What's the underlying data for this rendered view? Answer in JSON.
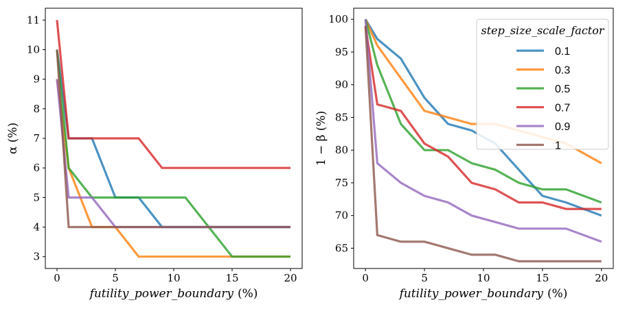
{
  "chart_data": [
    {
      "type": "line",
      "title": "",
      "xlabel": "futility_power_boundary",
      "xlabel_unit": "(%)",
      "ylabel": "α (%)",
      "xlim": [
        -1,
        21
      ],
      "ylim": [
        2.6,
        11.4
      ],
      "xticks": [
        "0",
        "5",
        "10",
        "15",
        "20"
      ],
      "yticks": [
        "3",
        "4",
        "5",
        "6",
        "7",
        "8",
        "9",
        "10",
        "11"
      ],
      "x": [
        0,
        1,
        3,
        5,
        7,
        9,
        11,
        13,
        15,
        17,
        20
      ],
      "series": [
        {
          "name": "0.1",
          "values": [
            10,
            7,
            7,
            5,
            5,
            4,
            4,
            4,
            4,
            4,
            4
          ]
        },
        {
          "name": "0.3",
          "values": [
            9,
            6,
            4,
            4,
            3,
            3,
            3,
            3,
            3,
            3,
            3
          ]
        },
        {
          "name": "0.5",
          "values": [
            10,
            6,
            5,
            5,
            5,
            5,
            5,
            4,
            3,
            3,
            3
          ]
        },
        {
          "name": "0.7",
          "values": [
            11,
            7,
            7,
            7,
            7,
            6,
            6,
            6,
            6,
            6,
            6
          ]
        },
        {
          "name": "0.9",
          "values": [
            9,
            5,
            5,
            4,
            4,
            4,
            4,
            4,
            4,
            4,
            4
          ]
        },
        {
          "name": "1",
          "values": [
            10,
            4,
            4,
            4,
            4,
            4,
            4,
            4,
            4,
            4,
            4
          ]
        }
      ]
    },
    {
      "type": "line",
      "title": "",
      "xlabel": "futility_power_boundary",
      "xlabel_unit": "(%)",
      "ylabel": "1 − β (%)",
      "xlim": [
        -1,
        21
      ],
      "ylim": [
        61.9,
        101.7
      ],
      "xticks": [
        "0",
        "5",
        "10",
        "15",
        "20"
      ],
      "yticks": [
        "65",
        "70",
        "75",
        "80",
        "85",
        "90",
        "95",
        "100"
      ],
      "x": [
        0,
        1,
        3,
        5,
        7,
        9,
        11,
        13,
        15,
        17,
        20
      ],
      "series": [
        {
          "name": "0.1",
          "values": [
            100,
            97,
            94,
            88,
            84,
            83,
            81,
            77,
            73,
            72,
            70
          ]
        },
        {
          "name": "0.3",
          "values": [
            100,
            96,
            91,
            86,
            85,
            84,
            84,
            83,
            82,
            81,
            78
          ]
        },
        {
          "name": "0.5",
          "values": [
            100,
            93,
            84,
            80,
            80,
            78,
            77,
            75,
            74,
            74,
            72
          ]
        },
        {
          "name": "0.7",
          "values": [
            99,
            87,
            86,
            81,
            79,
            75,
            74,
            72,
            72,
            71,
            71
          ]
        },
        {
          "name": "0.9",
          "values": [
            100,
            78,
            75,
            73,
            72,
            70,
            69,
            68,
            68,
            68,
            66
          ]
        },
        {
          "name": "1",
          "values": [
            99,
            67,
            66,
            66,
            65,
            64,
            64,
            63,
            63,
            63,
            63
          ]
        }
      ]
    }
  ],
  "legend": {
    "title": "step_size_scale_factor",
    "placement": "top-right",
    "entries": [
      "0.1",
      "0.3",
      "0.5",
      "0.7",
      "0.9",
      "1"
    ]
  },
  "colors": {
    "0.1": "#1f77b4",
    "0.3": "#ff7f0e",
    "0.5": "#2ca02c",
    "0.7": "#d62728",
    "0.9": "#9467bd",
    "1": "#8c564b"
  }
}
